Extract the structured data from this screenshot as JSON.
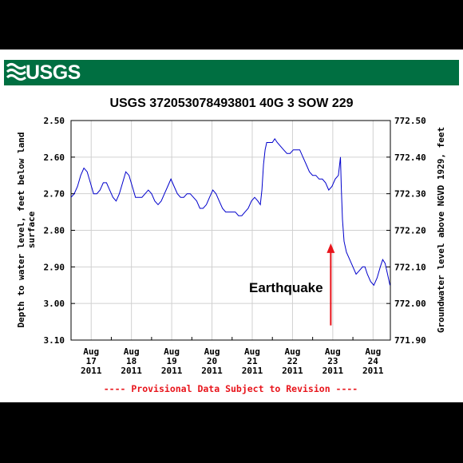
{
  "banner": {
    "logo": "USGS",
    "logo_icon": "usgs-wave-icon",
    "color": "#006f41"
  },
  "chart_data": {
    "type": "line",
    "title": "USGS 372053078493801 40G  3 SOW 229",
    "ylabel_left": [
      "Depth to water level, feet below land",
      "surface"
    ],
    "ylabel_right": "Groundwater level above NGVD 1929, feet",
    "ylim_left": [
      2.5,
      3.1
    ],
    "left_ticks": [
      "2.50",
      "2.60",
      "2.70",
      "2.80",
      "2.90",
      "3.00",
      "3.10"
    ],
    "right_ticks": [
      "772.50",
      "772.40",
      "772.30",
      "772.20",
      "772.10",
      "772.00",
      "771.90"
    ],
    "x_ticks": [
      {
        "month": "Aug",
        "day": "17",
        "year": "2011",
        "t": 0.5
      },
      {
        "month": "Aug",
        "day": "18",
        "year": "2011",
        "t": 1.5
      },
      {
        "month": "Aug",
        "day": "19",
        "year": "2011",
        "t": 2.5
      },
      {
        "month": "Aug",
        "day": "20",
        "year": "2011",
        "t": 3.5
      },
      {
        "month": "Aug",
        "day": "21",
        "year": "2011",
        "t": 4.5
      },
      {
        "month": "Aug",
        "day": "22",
        "year": "2011",
        "t": 5.5
      },
      {
        "month": "Aug",
        "day": "23",
        "year": "2011",
        "t": 6.5
      },
      {
        "month": "Aug",
        "day": "24",
        "year": "2011",
        "t": 7.5
      }
    ],
    "x_range": [
      0,
      7.93
    ],
    "series_color": "#0000cc",
    "series": [
      {
        "name": "",
        "points": [
          [
            0.0,
            2.71
          ],
          [
            0.08,
            2.7
          ],
          [
            0.16,
            2.68
          ],
          [
            0.24,
            2.65
          ],
          [
            0.32,
            2.63
          ],
          [
            0.4,
            2.64
          ],
          [
            0.48,
            2.67
          ],
          [
            0.56,
            2.7
          ],
          [
            0.64,
            2.7
          ],
          [
            0.72,
            2.69
          ],
          [
            0.8,
            2.67
          ],
          [
            0.88,
            2.67
          ],
          [
            0.96,
            2.69
          ],
          [
            1.04,
            2.71
          ],
          [
            1.12,
            2.72
          ],
          [
            1.2,
            2.7
          ],
          [
            1.28,
            2.67
          ],
          [
            1.36,
            2.64
          ],
          [
            1.44,
            2.65
          ],
          [
            1.52,
            2.68
          ],
          [
            1.6,
            2.71
          ],
          [
            1.68,
            2.71
          ],
          [
            1.76,
            2.71
          ],
          [
            1.84,
            2.7
          ],
          [
            1.92,
            2.69
          ],
          [
            2.0,
            2.7
          ],
          [
            2.08,
            2.72
          ],
          [
            2.16,
            2.73
          ],
          [
            2.24,
            2.72
          ],
          [
            2.32,
            2.7
          ],
          [
            2.4,
            2.68
          ],
          [
            2.48,
            2.66
          ],
          [
            2.56,
            2.68
          ],
          [
            2.64,
            2.7
          ],
          [
            2.72,
            2.71
          ],
          [
            2.8,
            2.71
          ],
          [
            2.88,
            2.7
          ],
          [
            2.96,
            2.7
          ],
          [
            3.04,
            2.71
          ],
          [
            3.12,
            2.72
          ],
          [
            3.2,
            2.74
          ],
          [
            3.28,
            2.74
          ],
          [
            3.36,
            2.73
          ],
          [
            3.44,
            2.71
          ],
          [
            3.52,
            2.69
          ],
          [
            3.6,
            2.7
          ],
          [
            3.68,
            2.72
          ],
          [
            3.76,
            2.74
          ],
          [
            3.84,
            2.75
          ],
          [
            3.92,
            2.75
          ],
          [
            4.0,
            2.75
          ],
          [
            4.08,
            2.75
          ],
          [
            4.16,
            2.76
          ],
          [
            4.24,
            2.76
          ],
          [
            4.32,
            2.75
          ],
          [
            4.4,
            2.74
          ],
          [
            4.48,
            2.72
          ],
          [
            4.56,
            2.71
          ],
          [
            4.64,
            2.72
          ],
          [
            4.7,
            2.73
          ],
          [
            4.74,
            2.69
          ],
          [
            4.78,
            2.62
          ],
          [
            4.82,
            2.58
          ],
          [
            4.86,
            2.56
          ],
          [
            4.92,
            2.56
          ],
          [
            5.0,
            2.56
          ],
          [
            5.06,
            2.55
          ],
          [
            5.12,
            2.56
          ],
          [
            5.2,
            2.57
          ],
          [
            5.28,
            2.58
          ],
          [
            5.36,
            2.59
          ],
          [
            5.44,
            2.59
          ],
          [
            5.52,
            2.58
          ],
          [
            5.6,
            2.58
          ],
          [
            5.68,
            2.58
          ],
          [
            5.76,
            2.6
          ],
          [
            5.84,
            2.62
          ],
          [
            5.92,
            2.64
          ],
          [
            6.0,
            2.65
          ],
          [
            6.08,
            2.65
          ],
          [
            6.16,
            2.66
          ],
          [
            6.24,
            2.66
          ],
          [
            6.32,
            2.67
          ],
          [
            6.4,
            2.69
          ],
          [
            6.48,
            2.68
          ],
          [
            6.56,
            2.66
          ],
          [
            6.64,
            2.65
          ],
          [
            6.69,
            2.6
          ],
          [
            6.71,
            2.68
          ],
          [
            6.74,
            2.77
          ],
          [
            6.78,
            2.83
          ],
          [
            6.84,
            2.86
          ],
          [
            6.92,
            2.88
          ],
          [
            7.0,
            2.9
          ],
          [
            7.08,
            2.92
          ],
          [
            7.16,
            2.91
          ],
          [
            7.24,
            2.9
          ],
          [
            7.3,
            2.9
          ],
          [
            7.36,
            2.92
          ],
          [
            7.44,
            2.94
          ],
          [
            7.52,
            2.95
          ],
          [
            7.6,
            2.93
          ],
          [
            7.68,
            2.9
          ],
          [
            7.74,
            2.88
          ],
          [
            7.8,
            2.89
          ],
          [
            7.86,
            2.92
          ],
          [
            7.92,
            2.95
          ]
        ]
      }
    ],
    "grid": true,
    "annotation": {
      "text": "Earthquake",
      "arrow_color": "#e8141b",
      "t": 6.45,
      "y_from": 3.06,
      "y_to": 2.84
    },
    "footer_note": "---- Provisional Data Subject to Revision ----"
  }
}
